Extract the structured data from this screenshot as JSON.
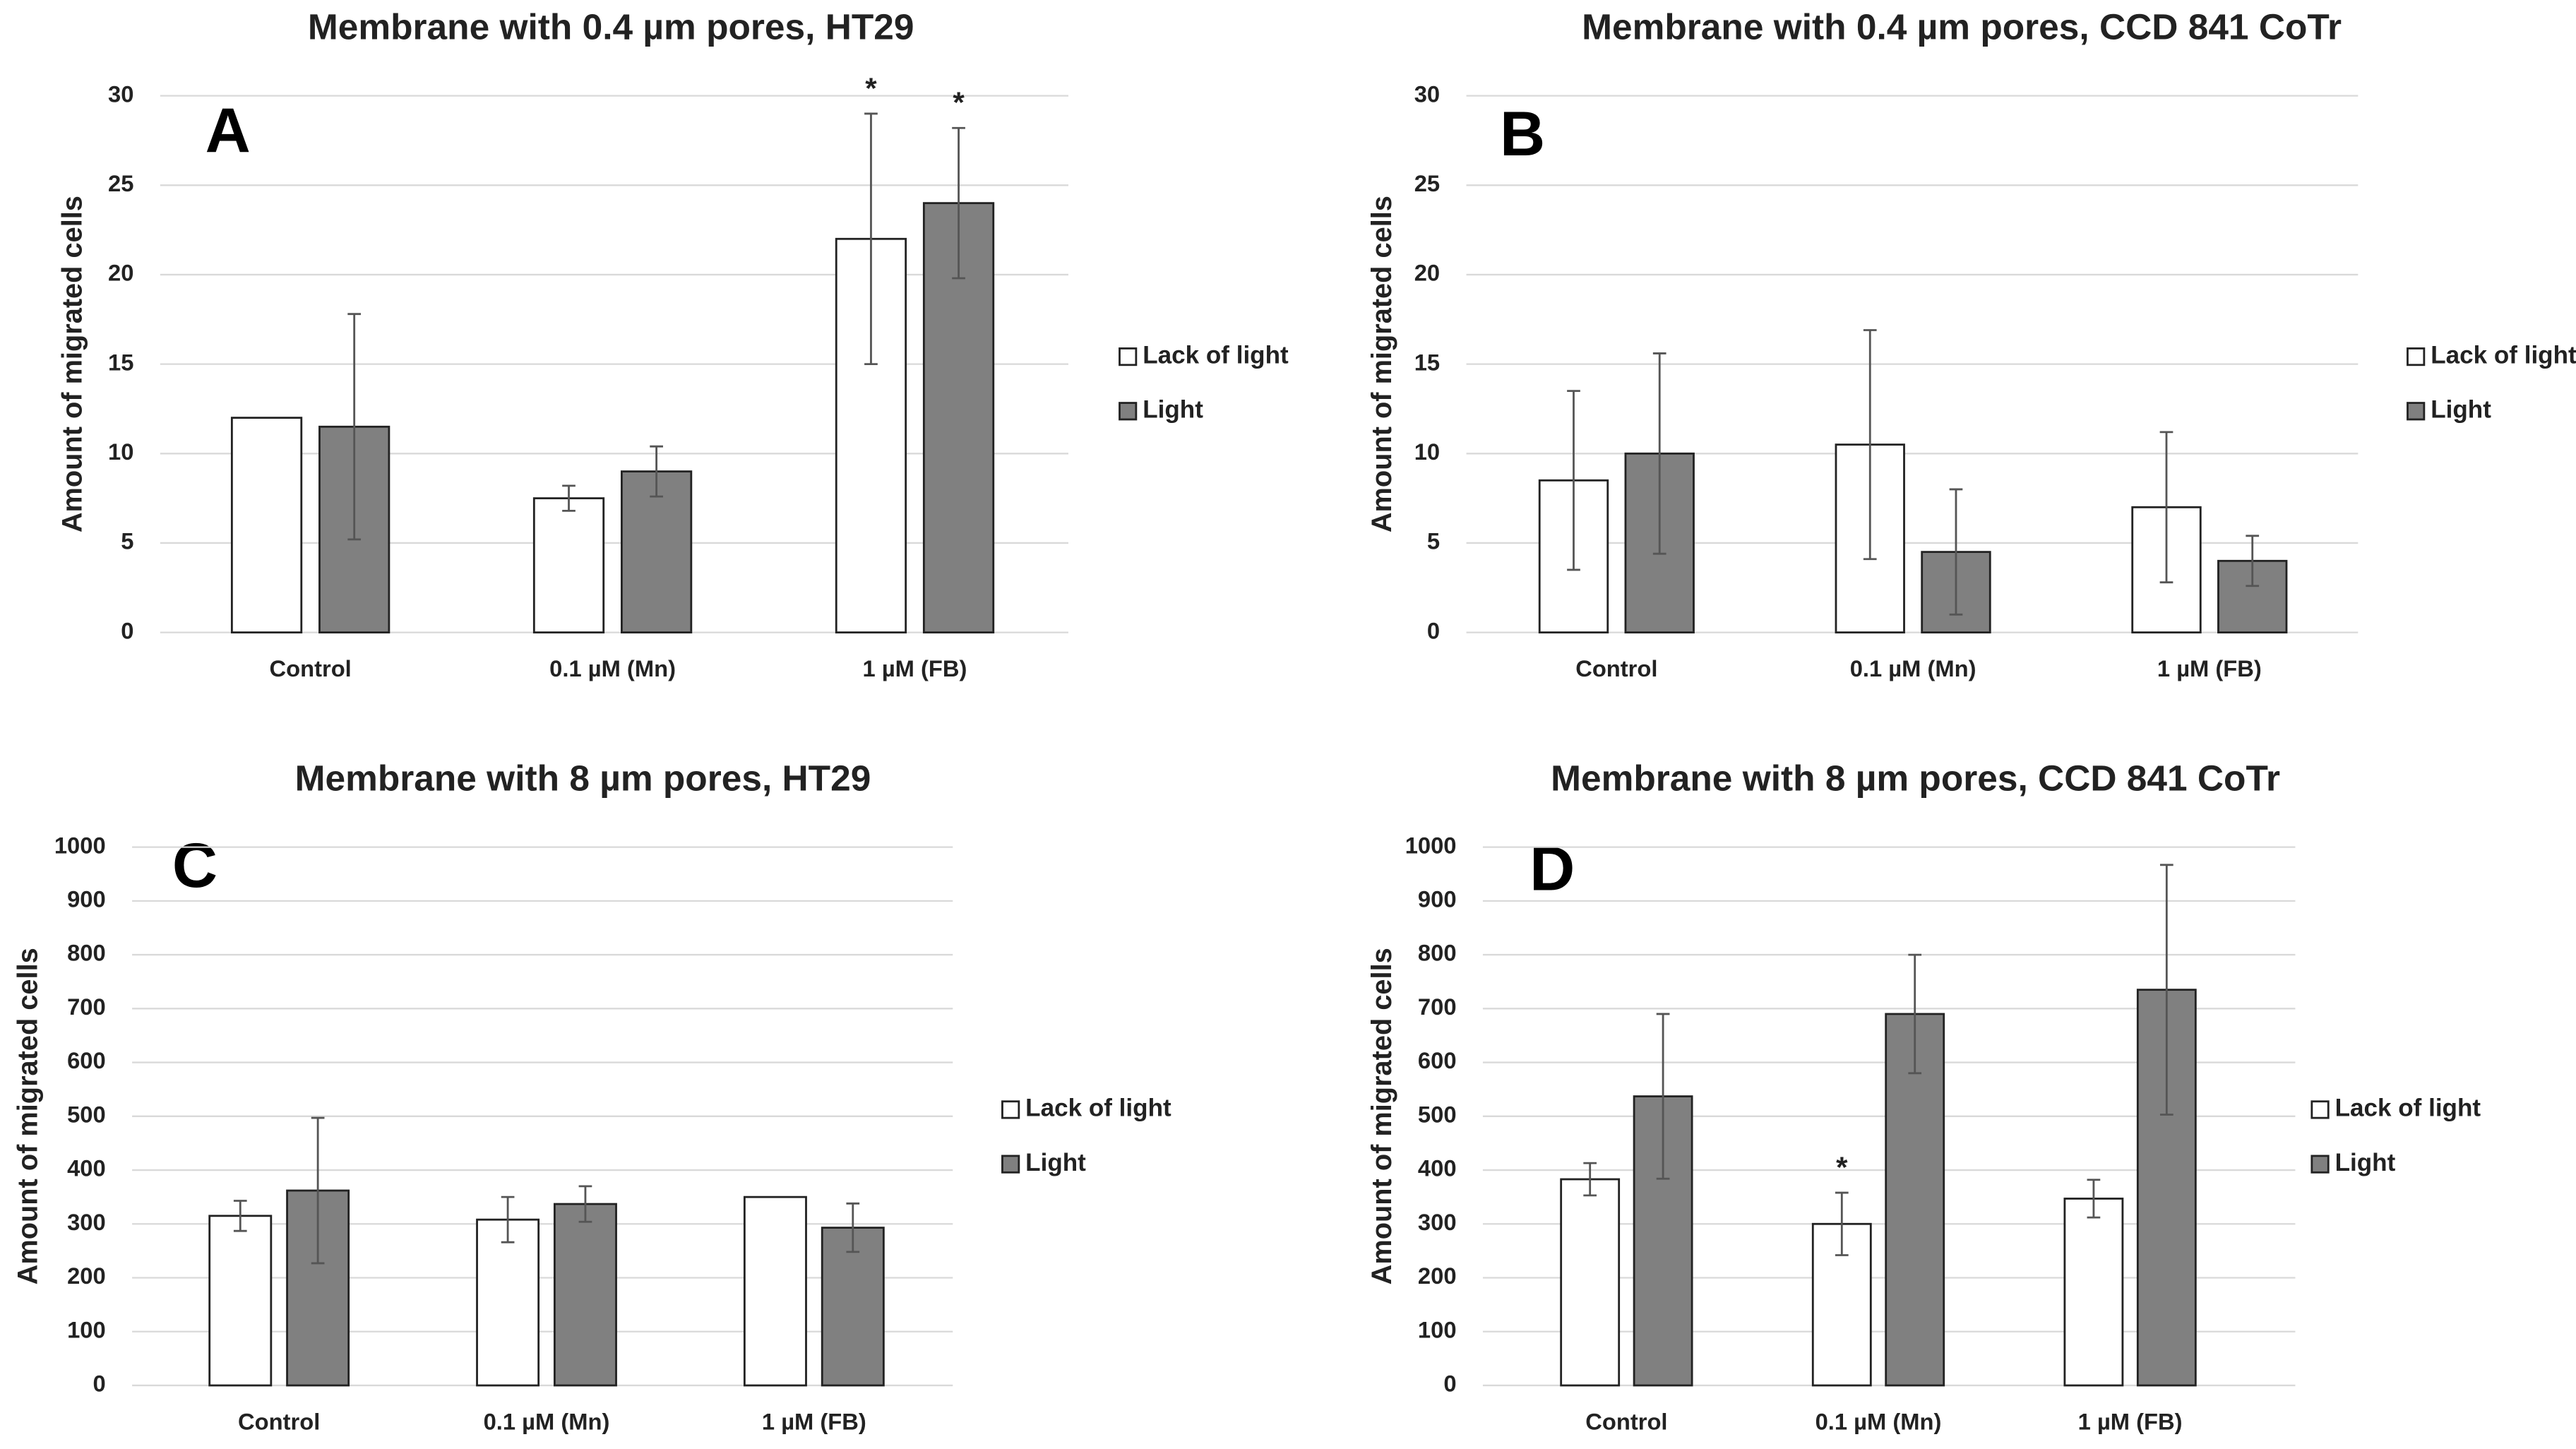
{
  "chart_data": [
    {
      "type": "bar",
      "title": "Membrane with 0.4 µm pores, HT29",
      "panel": "A",
      "y_label": "Amount of migrated cells",
      "categories": [
        "Control",
        "0.1 µM (Mn)",
        "1 µM (FB)"
      ],
      "series": [
        {
          "name": "Lack of light",
          "color": "#ffffff",
          "values": [
            12,
            7.5,
            22
          ],
          "errors": [
            null,
            0.7,
            7
          ],
          "significance": [
            null,
            null,
            "*"
          ]
        },
        {
          "name": "Light",
          "color": "#808080",
          "values": [
            11.5,
            9,
            24
          ],
          "errors": [
            6.3,
            1.4,
            4.2
          ],
          "significance": [
            null,
            null,
            "*"
          ]
        }
      ],
      "ylim": [
        0,
        30
      ],
      "yticks": [
        0,
        5,
        10,
        15,
        20,
        25,
        30
      ],
      "grid": true,
      "legend": "right"
    },
    {
      "type": "bar",
      "title": "Membrane with 0.4 µm pores, CCD 841 CoTr",
      "panel": "B",
      "y_label": "Amount of migrated cells",
      "categories": [
        "Control",
        "0.1 µM (Mn)",
        "1 µM (FB)"
      ],
      "series": [
        {
          "name": "Lack of light",
          "color": "#ffffff",
          "values": [
            8.5,
            10.5,
            7
          ],
          "errors": [
            5,
            6.4,
            4.2
          ],
          "significance": [
            null,
            null,
            null
          ]
        },
        {
          "name": "Light",
          "color": "#808080",
          "values": [
            10,
            4.5,
            4
          ],
          "errors": [
            5.6,
            3.5,
            1.4
          ],
          "significance": [
            null,
            null,
            null
          ]
        }
      ],
      "ylim": [
        0,
        30
      ],
      "yticks": [
        0,
        5,
        10,
        15,
        20,
        25,
        30
      ],
      "grid": true,
      "legend": "right"
    },
    {
      "type": "bar",
      "title": "Membrane with 8 µm pores, HT29",
      "panel": "C",
      "y_label": "Amount of migrated cells",
      "categories": [
        "Control",
        "0.1 µM (Mn)",
        "1 µM (FB)"
      ],
      "series": [
        {
          "name": "Lack of light",
          "color": "#ffffff",
          "values": [
            315,
            308,
            350
          ],
          "errors": [
            28,
            42,
            null
          ],
          "significance": [
            null,
            null,
            null
          ]
        },
        {
          "name": "Light",
          "color": "#808080",
          "values": [
            362,
            337,
            293
          ],
          "errors": [
            135,
            33,
            45
          ],
          "significance": [
            null,
            null,
            null
          ]
        }
      ],
      "ylim": [
        0,
        1000
      ],
      "yticks": [
        0,
        100,
        200,
        300,
        400,
        500,
        600,
        700,
        800,
        900,
        1000
      ],
      "grid": true,
      "legend": "right"
    },
    {
      "type": "bar",
      "title": "Membrane with 8 µm pores, CCD 841 CoTr",
      "panel": "D",
      "y_label": "Amount of migrated cells",
      "categories": [
        "Control",
        "0.1 µM (Mn)",
        "1 µM (FB)"
      ],
      "series": [
        {
          "name": "Lack of light",
          "color": "#ffffff",
          "values": [
            383,
            300,
            347
          ],
          "errors": [
            30,
            58,
            35
          ],
          "significance": [
            null,
            "*",
            null
          ]
        },
        {
          "name": "Light",
          "color": "#808080",
          "values": [
            537,
            690,
            735
          ],
          "errors": [
            153,
            110,
            232
          ],
          "significance": [
            null,
            null,
            null
          ]
        }
      ],
      "ylim": [
        0,
        1000
      ],
      "yticks": [
        0,
        100,
        200,
        300,
        400,
        500,
        600,
        700,
        800,
        900,
        1000
      ],
      "grid": true,
      "legend": "right"
    }
  ]
}
